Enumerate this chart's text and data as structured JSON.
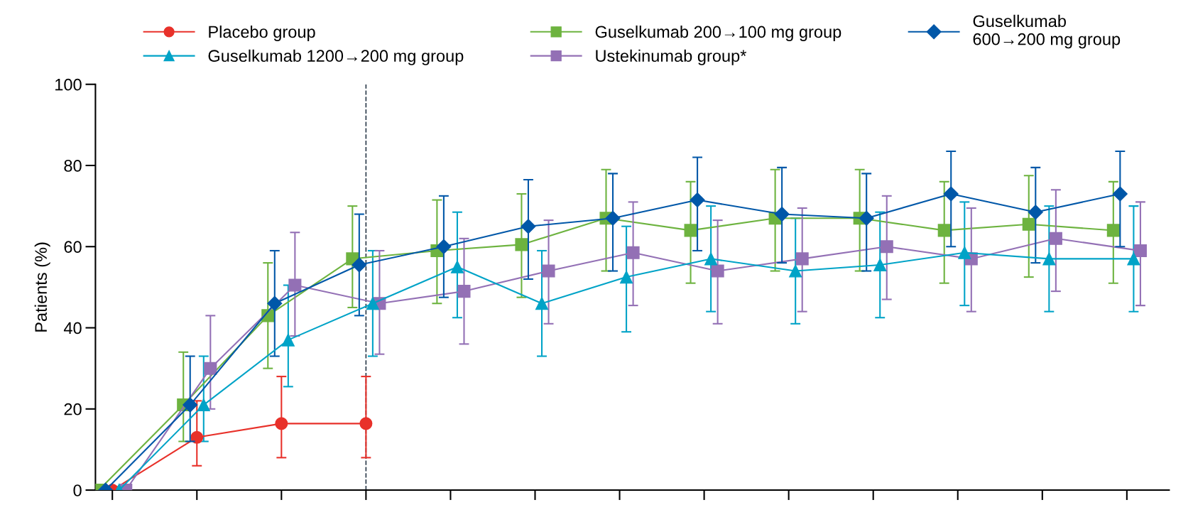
{
  "chart_data": {
    "type": "line",
    "ylabel": "Patients (%)",
    "categories": [
      null,
      null,
      null,
      null,
      null,
      null,
      null,
      null,
      null,
      null,
      null,
      null,
      null
    ],
    "ylim": [
      0,
      100
    ],
    "yticks": [
      0,
      20,
      40,
      60,
      80,
      100
    ],
    "grid": false,
    "legend": "top",
    "line_style": "solid",
    "series": [
      {
        "name": "Placebo group",
        "color": "#e8312a",
        "marker": "circle",
        "values": [
          0,
          13,
          16.4,
          16.4,
          null,
          null,
          null,
          null,
          null,
          null,
          null,
          null,
          null
        ],
        "errors": [
          null,
          [
            6,
            22
          ],
          [
            8,
            28
          ],
          [
            8,
            28
          ],
          null,
          null,
          null,
          null,
          null,
          null,
          null,
          null,
          null
        ]
      },
      {
        "name": "Guselkumab 1200→200 mg group",
        "color": "#00a3c7",
        "marker": "triangle",
        "values": [
          0,
          21,
          37,
          46,
          55,
          46,
          52.5,
          57,
          54,
          55.5,
          58.5,
          57,
          57
        ],
        "errors": [
          null,
          [
            12,
            33
          ],
          [
            25.5,
            50.5
          ],
          [
            33,
            59
          ],
          [
            42.5,
            68.5
          ],
          [
            33,
            59
          ],
          [
            39,
            65
          ],
          [
            44,
            70
          ],
          [
            41,
            67
          ],
          [
            42.5,
            68.5
          ],
          [
            45.5,
            71
          ],
          [
            44,
            70
          ],
          [
            44,
            70
          ]
        ]
      },
      {
        "name": "Guselkumab 200→100 mg group",
        "color": "#6db33f",
        "marker": "square",
        "values": [
          0,
          21,
          43,
          57,
          59,
          60.5,
          67,
          64,
          67,
          67,
          64,
          65.5,
          64
        ],
        "errors": [
          null,
          [
            12,
            34
          ],
          [
            30,
            56
          ],
          [
            45,
            70
          ],
          [
            46,
            71.5
          ],
          [
            47.5,
            73
          ],
          [
            54,
            79
          ],
          [
            51,
            76
          ],
          [
            54,
            79
          ],
          [
            54,
            79
          ],
          [
            51,
            76
          ],
          [
            52.5,
            77.5
          ],
          [
            51,
            76
          ]
        ]
      },
      {
        "name": "Ustekinumab group*",
        "color": "#9370b5",
        "marker": "square",
        "values": [
          0,
          30,
          50.5,
          46,
          49,
          54,
          58.5,
          54,
          57,
          60,
          57,
          62,
          59
        ],
        "errors": [
          null,
          [
            20,
            43
          ],
          [
            38,
            63.5
          ],
          [
            33.5,
            59
          ],
          [
            36,
            62
          ],
          [
            41,
            66.5
          ],
          [
            45.5,
            71
          ],
          [
            41,
            66.5
          ],
          [
            44,
            69.5
          ],
          [
            47,
            72.5
          ],
          [
            44,
            69.5
          ],
          [
            49,
            74
          ],
          [
            45.5,
            71
          ]
        ]
      },
      {
        "name": "Guselkumab\n600→200 mg group",
        "color": "#0057a8",
        "marker": "diamond",
        "values": [
          0,
          21,
          46,
          55.5,
          60,
          65,
          67,
          71.5,
          68,
          67,
          73,
          68.5,
          73
        ],
        "errors": [
          null,
          [
            12,
            33
          ],
          [
            33,
            59
          ],
          [
            43,
            68
          ],
          [
            47.5,
            72.5
          ],
          [
            52,
            76.5
          ],
          [
            54,
            78
          ],
          [
            59,
            82
          ],
          [
            56,
            79.5
          ],
          [
            54,
            78
          ],
          [
            60,
            83.5
          ],
          [
            56,
            79.5
          ],
          [
            60,
            83.5
          ]
        ]
      }
    ]
  }
}
